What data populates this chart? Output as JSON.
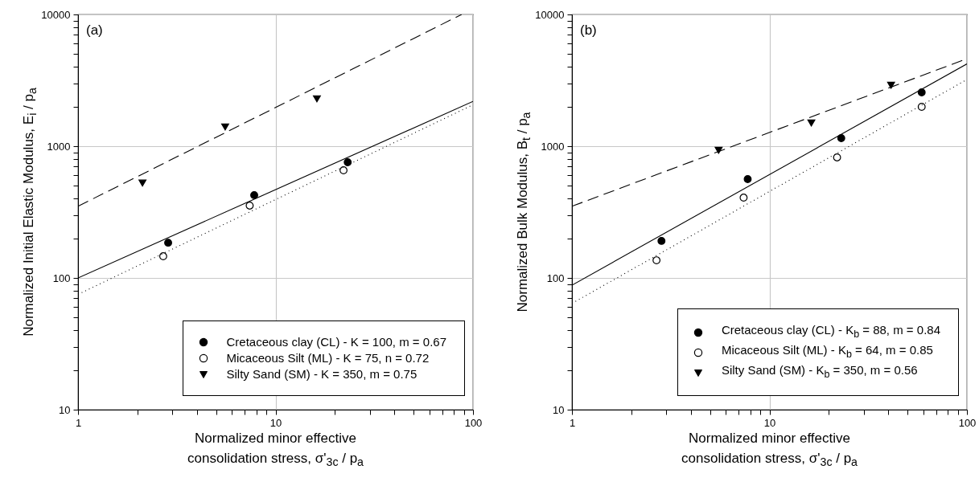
{
  "chart_data": [
    {
      "type": "scatter",
      "annotations": [
        "(a)"
      ],
      "xlabel": "Normalized minor effective\nconsolidation stress, σ'$_{3c}$ / p$_{a}$",
      "ylabel": "Normalized Initial Elastic Modulus, E$_{i}$ / p$_{a}$",
      "log": "xy",
      "xlim": [
        1,
        100
      ],
      "ylim": [
        10,
        10000
      ],
      "xticks": [
        1,
        {
          "value": 2,
          "label": null
        },
        {
          "value": 3,
          "label": null
        },
        {
          "value": 4,
          "label": null
        },
        {
          "value": 5,
          "label": null
        },
        {
          "value": 6,
          "label": null
        },
        {
          "value": 7,
          "label": null
        },
        {
          "value": 8,
          "label": null
        },
        {
          "value": 9,
          "label": null
        },
        10,
        {
          "value": 20,
          "label": null
        },
        {
          "value": 30,
          "label": null
        },
        {
          "value": 40,
          "label": null
        },
        {
          "value": 50,
          "label": null
        },
        {
          "value": 60,
          "label": null
        },
        {
          "value": 70,
          "label": null
        },
        {
          "value": 80,
          "label": null
        },
        {
          "value": 90,
          "label": null
        },
        100
      ],
      "yticks": [
        10,
        {
          "value": 20,
          "label": null
        },
        {
          "value": 30,
          "label": null
        },
        {
          "value": 40,
          "label": null
        },
        {
          "value": 50,
          "label": null
        },
        {
          "value": 60,
          "label": null
        },
        {
          "value": 70,
          "label": null
        },
        {
          "value": 80,
          "label": null
        },
        {
          "value": 90,
          "label": null
        },
        100,
        {
          "value": 200,
          "label": null
        },
        {
          "value": 300,
          "label": null
        },
        {
          "value": 400,
          "label": null
        },
        {
          "value": 500,
          "label": null
        },
        {
          "value": 600,
          "label": null
        },
        {
          "value": 700,
          "label": null
        },
        {
          "value": 800,
          "label": null
        },
        {
          "value": 900,
          "label": null
        },
        1000,
        {
          "value": 2000,
          "label": null
        },
        {
          "value": 3000,
          "label": null
        },
        {
          "value": 4000,
          "label": null
        },
        {
          "value": 5000,
          "label": null
        },
        {
          "value": 6000,
          "label": null
        },
        {
          "value": 7000,
          "label": null
        },
        {
          "value": 8000,
          "label": null
        },
        {
          "value": 9000,
          "label": null
        },
        10000
      ],
      "grid": true,
      "legend": "bottom right",
      "series": [
        {
          "name": "Cretaceous clay (CL) - K = 100, m = 0.67",
          "marker": "circle",
          "color": "#000000",
          "x": [
            2.86,
            7.8,
            23.2
          ],
          "values": [
            185,
            425,
            755
          ]
        },
        {
          "name": "Micaceous Silt (ML) - K = 75, n = 0.72",
          "marker": "circle",
          "color": "#ffffff",
          "x": [
            2.7,
            7.4,
            22.1
          ],
          "values": [
            146,
            354,
            656
          ]
        },
        {
          "name": "Silty Sand (SM) - K = 350, m = 0.75",
          "marker": "triangle",
          "color": "#000000",
          "x": [
            2.12,
            5.56,
            16.2
          ],
          "values": [
            525,
            1400,
            2290
          ]
        },
        {
          "type": "line",
          "line_style": "solid",
          "color": "#000000",
          "x": [
            1,
            100
          ],
          "values": [
            100,
            2188
          ]
        },
        {
          "type": "line",
          "line_style": "dotted",
          "color": "#000000",
          "x": [
            1,
            100
          ],
          "values": [
            75,
            2063
          ]
        },
        {
          "type": "line",
          "line_style": "dashed",
          "color": "#000000",
          "x": [
            1,
            87.6
          ],
          "values": [
            350,
            10000
          ]
        }
      ]
    },
    {
      "type": "scatter",
      "annotations": [
        "(b)"
      ],
      "xlabel": "Normalized minor effective\nconsolidation stress, σ'$_{3c}$ / p$_{a}$",
      "ylabel": "Normalized Bulk Modulus, B$_{t}$ / p$_{a}$",
      "log": "xy",
      "xlim": [
        1,
        100
      ],
      "ylim": [
        10,
        10000
      ],
      "xticks": [
        1,
        {
          "value": 2,
          "label": null
        },
        {
          "value": 3,
          "label": null
        },
        {
          "value": 4,
          "label": null
        },
        {
          "value": 5,
          "label": null
        },
        {
          "value": 6,
          "label": null
        },
        {
          "value": 7,
          "label": null
        },
        {
          "value": 8,
          "label": null
        },
        {
          "value": 9,
          "label": null
        },
        10,
        {
          "value": 20,
          "label": null
        },
        {
          "value": 30,
          "label": null
        },
        {
          "value": 40,
          "label": null
        },
        {
          "value": 50,
          "label": null
        },
        {
          "value": 60,
          "label": null
        },
        {
          "value": 70,
          "label": null
        },
        {
          "value": 80,
          "label": null
        },
        {
          "value": 90,
          "label": null
        },
        100
      ],
      "yticks": [
        10,
        {
          "value": 20,
          "label": null
        },
        {
          "value": 30,
          "label": null
        },
        {
          "value": 40,
          "label": null
        },
        {
          "value": 50,
          "label": null
        },
        {
          "value": 60,
          "label": null
        },
        {
          "value": 70,
          "label": null
        },
        {
          "value": 80,
          "label": null
        },
        {
          "value": 90,
          "label": null
        },
        100,
        {
          "value": 200,
          "label": null
        },
        {
          "value": 300,
          "label": null
        },
        {
          "value": 400,
          "label": null
        },
        {
          "value": 500,
          "label": null
        },
        {
          "value": 600,
          "label": null
        },
        {
          "value": 700,
          "label": null
        },
        {
          "value": 800,
          "label": null
        },
        {
          "value": 900,
          "label": null
        },
        1000,
        {
          "value": 2000,
          "label": null
        },
        {
          "value": 3000,
          "label": null
        },
        {
          "value": 4000,
          "label": null
        },
        {
          "value": 5000,
          "label": null
        },
        {
          "value": 6000,
          "label": null
        },
        {
          "value": 7000,
          "label": null
        },
        {
          "value": 8000,
          "label": null
        },
        {
          "value": 9000,
          "label": null
        },
        10000
      ],
      "grid": true,
      "legend": "bottom right",
      "series": [
        {
          "name": "Cretaceous clay (CL) - K$_{b}$ = 88, m = 0.84",
          "marker": "circle",
          "color": "#000000",
          "x": [
            2.84,
            7.76,
            23.1,
            59
          ],
          "values": [
            191,
            562,
            1150,
            2560
          ]
        },
        {
          "name": "Micaceous Silt (ML) - K$_{b}$ = 64, m = 0.85",
          "marker": "circle",
          "color": "#ffffff",
          "x": [
            2.68,
            7.4,
            22.0,
            59
          ],
          "values": [
            136,
            407,
            822,
            1990
          ]
        },
        {
          "name": "Silty Sand (SM) - K$_{b}$ = 350, m = 0.56",
          "marker": "triangle",
          "color": "#000000",
          "x": [
            5.53,
            16.3,
            41.3
          ],
          "values": [
            930,
            1500,
            2900
          ]
        },
        {
          "type": "line",
          "line_style": "solid",
          "color": "#000000",
          "x": [
            1,
            100
          ],
          "values": [
            88,
            4217
          ]
        },
        {
          "type": "line",
          "line_style": "dotted",
          "color": "#000000",
          "x": [
            1,
            100
          ],
          "values": [
            64,
            3208
          ]
        },
        {
          "type": "line",
          "line_style": "dashed",
          "color": "#000000",
          "x": [
            1,
            100
          ],
          "values": [
            350,
            4613
          ]
        }
      ]
    }
  ]
}
